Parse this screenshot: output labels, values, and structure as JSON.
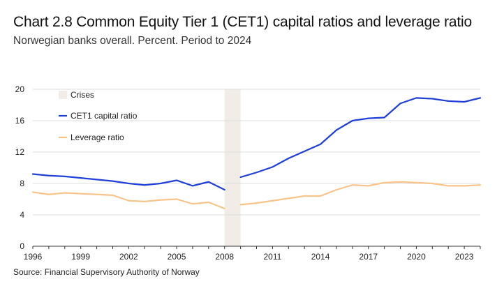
{
  "header": {
    "title": "Chart 2.8 Common Equity Tier 1 (CET1) capital ratios and leverage ratio",
    "subtitle": "Norwegian banks overall. Percent. Period to 2024"
  },
  "footer": {
    "source": "Source: Financial Supervisory Authority of Norway"
  },
  "colors": {
    "cet1": "#1f3fd9",
    "leverage": "#f8c48a",
    "crises": "#f1ede6",
    "gridline": "#dddddd",
    "axis": "#333333"
  },
  "chart_data": {
    "type": "line",
    "title": "Chart 2.8 Common Equity Tier 1 (CET1) capital ratios and leverage ratio",
    "subtitle": "Norwegian banks overall. Percent. Period to 2024",
    "xlabel": "",
    "ylabel": "",
    "xlim": [
      1996,
      2024
    ],
    "ylim": [
      0,
      20
    ],
    "yticks": [
      0,
      4,
      8,
      12,
      16,
      20
    ],
    "xticks": [
      "1996",
      "1999",
      "2002",
      "2005",
      "2008",
      "2011",
      "2014",
      "2017",
      "2020",
      "2023"
    ],
    "grid": true,
    "legend": "top-left",
    "crises": [
      {
        "label": "Crises",
        "start": 2008,
        "end": 2009
      }
    ],
    "series": [
      {
        "name": "CET1 capital ratio",
        "color": "#1f3fd9",
        "points": [
          [
            1996,
            9.2
          ],
          [
            1997,
            9.0
          ],
          [
            1998,
            8.9
          ],
          [
            1999,
            8.7
          ],
          [
            2000,
            8.5
          ],
          [
            2001,
            8.3
          ],
          [
            2002,
            8.0
          ],
          [
            2003,
            7.8
          ],
          [
            2004,
            8.0
          ],
          [
            2005,
            8.4
          ],
          [
            2006,
            7.7
          ],
          [
            2007,
            8.2
          ],
          [
            2008,
            7.2
          ],
          [
            2009,
            8.8
          ],
          [
            2010,
            9.4
          ],
          [
            2011,
            10.1
          ],
          [
            2012,
            11.2
          ],
          [
            2013,
            12.1
          ],
          [
            2014,
            13.0
          ],
          [
            2015,
            14.8
          ],
          [
            2016,
            16.0
          ],
          [
            2017,
            16.3
          ],
          [
            2018,
            16.4
          ],
          [
            2019,
            18.2
          ],
          [
            2020,
            18.9
          ],
          [
            2021,
            18.8
          ],
          [
            2022,
            18.5
          ],
          [
            2023,
            18.4
          ],
          [
            2024,
            18.9
          ]
        ]
      },
      {
        "name": "Leverage ratio",
        "color": "#f8c48a",
        "points": [
          [
            1996,
            6.9
          ],
          [
            1997,
            6.6
          ],
          [
            1998,
            6.8
          ],
          [
            1999,
            6.7
          ],
          [
            2000,
            6.6
          ],
          [
            2001,
            6.5
          ],
          [
            2002,
            5.8
          ],
          [
            2003,
            5.7
          ],
          [
            2004,
            5.9
          ],
          [
            2005,
            6.0
          ],
          [
            2006,
            5.4
          ],
          [
            2007,
            5.6
          ],
          [
            2008,
            4.8
          ],
          [
            2009,
            5.3
          ],
          [
            2010,
            5.5
          ],
          [
            2011,
            5.8
          ],
          [
            2012,
            6.1
          ],
          [
            2013,
            6.4
          ],
          [
            2014,
            6.4
          ],
          [
            2015,
            7.2
          ],
          [
            2016,
            7.8
          ],
          [
            2017,
            7.7
          ],
          [
            2018,
            8.1
          ],
          [
            2019,
            8.2
          ],
          [
            2020,
            8.1
          ],
          [
            2021,
            8.0
          ],
          [
            2022,
            7.7
          ],
          [
            2023,
            7.7
          ],
          [
            2024,
            7.8
          ]
        ]
      }
    ]
  }
}
